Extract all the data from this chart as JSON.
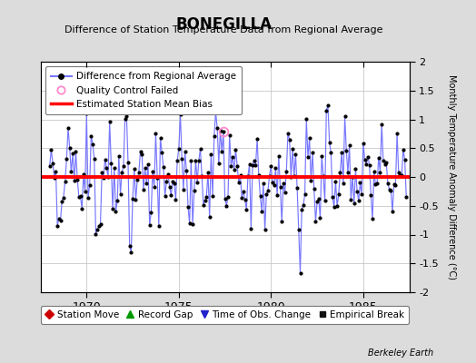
{
  "title": "BONEGILLA",
  "subtitle": "Difference of Station Temperature Data from Regional Average",
  "ylabel": "Monthly Temperature Anomaly Difference (°C)",
  "xlim": [
    1967.5,
    1987.5
  ],
  "ylim": [
    -2,
    2
  ],
  "yticks": [
    -2,
    -1.5,
    -1,
    -0.5,
    0,
    0.5,
    1,
    1.5,
    2
  ],
  "xticks": [
    1970,
    1975,
    1980,
    1985
  ],
  "mean_bias": 0.0,
  "line_color": "#7777ff",
  "dot_color": "#000000",
  "bias_color": "#ff0000",
  "bg_color": "#e0e0e0",
  "plot_bg": "#ffffff",
  "grid_color": "#cccccc",
  "legend1_items": [
    {
      "label": "Difference from Regional Average"
    },
    {
      "label": "Quality Control Failed"
    },
    {
      "label": "Estimated Station Mean Bias"
    }
  ],
  "legend2_items": [
    {
      "label": "Station Move"
    },
    {
      "label": "Record Gap"
    },
    {
      "label": "Time of Obs. Change"
    },
    {
      "label": "Empirical Break"
    }
  ],
  "qc_failed_x": 1977.42,
  "qc_failed_y": 0.78,
  "berkeley_earth_label": "Berkeley Earth"
}
